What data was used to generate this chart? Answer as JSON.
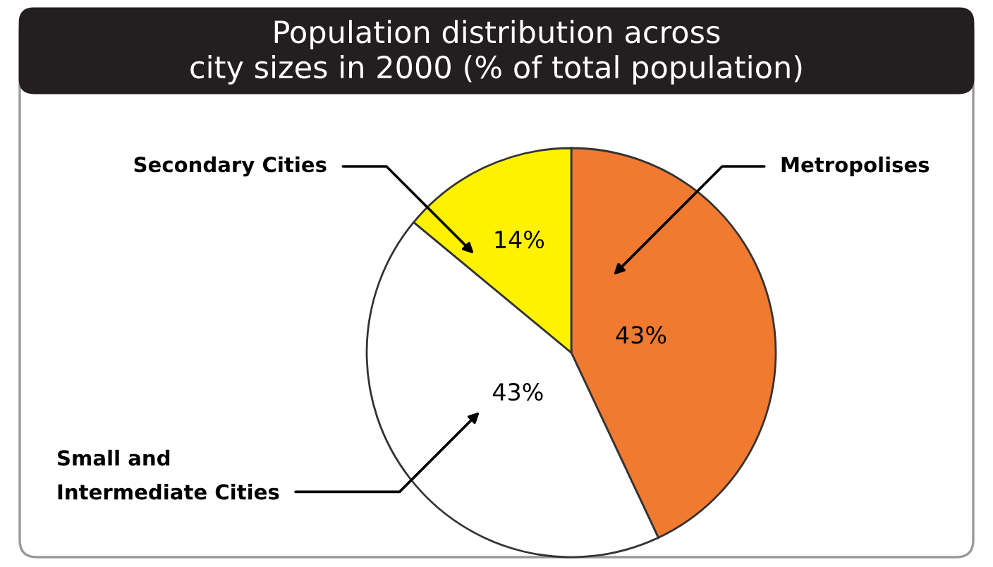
{
  "chart_data": {
    "type": "pie",
    "title": "Population distribution across\ncity sizes in 2000 (% of total population)",
    "categories": [
      "Metropolises",
      "Small and\nIntermediate Cities",
      "Secondary Cities"
    ],
    "values": [
      43,
      43,
      14
    ],
    "colors": [
      "#f07a30",
      "#ffffff",
      "#fff200"
    ],
    "value_labels": [
      "43%",
      "43%",
      "14%"
    ],
    "legend": false
  }
}
